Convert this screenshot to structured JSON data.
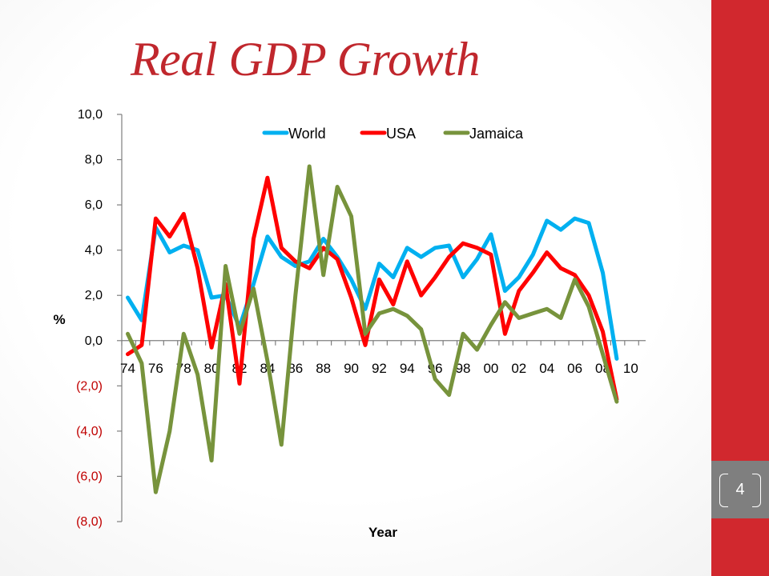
{
  "slide": {
    "title": "Real GDP Growth",
    "page_number": "4"
  },
  "colors": {
    "title": "#c0272d",
    "side_bar": "#d1282e",
    "page_box": "#7f7f7f",
    "axis": "#7f7f7f",
    "negative_tick": "#c00000",
    "world": "#00b0f0",
    "usa": "#ff0000",
    "jamaica": "#77933c"
  },
  "chart_data": {
    "type": "line",
    "title": "",
    "xlabel": "Year",
    "ylabel": "%",
    "ylim": [
      -8,
      10
    ],
    "y_ticks": [
      10,
      8,
      6,
      4,
      2,
      0,
      -2,
      -4,
      -6,
      -8
    ],
    "y_tick_labels": [
      "10,0",
      "8,0",
      "6,0",
      "4,0",
      "2,0",
      "0,0",
      "(2,0)",
      "(4,0)",
      "(6,0)",
      "(8,0)"
    ],
    "grid": false,
    "legend_position": "top",
    "categories": [
      "74",
      "75",
      "76",
      "77",
      "78",
      "79",
      "80",
      "81",
      "82",
      "83",
      "84",
      "85",
      "86",
      "87",
      "88",
      "89",
      "90",
      "91",
      "92",
      "93",
      "94",
      "95",
      "96",
      "97",
      "98",
      "99",
      "00",
      "01",
      "02",
      "03",
      "04",
      "05",
      "06",
      "07",
      "08",
      "09",
      "10"
    ],
    "category_labels": [
      "74",
      "76",
      "78",
      "80",
      "82",
      "84",
      "86",
      "88",
      "90",
      "92",
      "94",
      "96",
      "98",
      "00",
      "02",
      "04",
      "06",
      "08",
      "10"
    ],
    "series": [
      {
        "name": "World",
        "values": [
          1.9,
          0.9,
          5.0,
          3.9,
          4.2,
          4.0,
          1.9,
          2.0,
          0.6,
          2.5,
          4.6,
          3.7,
          3.3,
          3.5,
          4.5,
          3.7,
          2.7,
          1.4,
          3.4,
          2.8,
          4.1,
          3.7,
          4.1,
          4.2,
          2.8,
          3.6,
          4.7,
          2.2,
          2.8,
          3.8,
          5.3,
          4.9,
          5.4,
          5.2,
          3.0,
          -0.8,
          null
        ]
      },
      {
        "name": "USA",
        "values": [
          -0.6,
          -0.2,
          5.4,
          4.6,
          5.6,
          3.2,
          -0.3,
          2.5,
          -1.9,
          4.5,
          7.2,
          4.1,
          3.5,
          3.2,
          4.1,
          3.6,
          1.9,
          -0.2,
          2.7,
          1.6,
          3.5,
          2.0,
          2.8,
          3.7,
          4.3,
          4.1,
          3.8,
          0.3,
          2.2,
          3.0,
          3.9,
          3.2,
          2.9,
          2.0,
          0.4,
          -2.6,
          null
        ]
      },
      {
        "name": "Jamaica",
        "values": [
          0.3,
          -1.0,
          -6.7,
          -4.0,
          0.3,
          -1.5,
          -5.3,
          3.3,
          0.3,
          2.3,
          -0.9,
          -4.6,
          2.0,
          7.7,
          2.9,
          6.8,
          5.5,
          0.3,
          1.2,
          1.4,
          1.1,
          0.5,
          -1.7,
          -2.4,
          0.3,
          -0.4,
          0.7,
          1.7,
          1.0,
          1.2,
          1.4,
          1.0,
          2.7,
          1.5,
          -0.6,
          -2.7,
          null
        ]
      }
    ]
  }
}
